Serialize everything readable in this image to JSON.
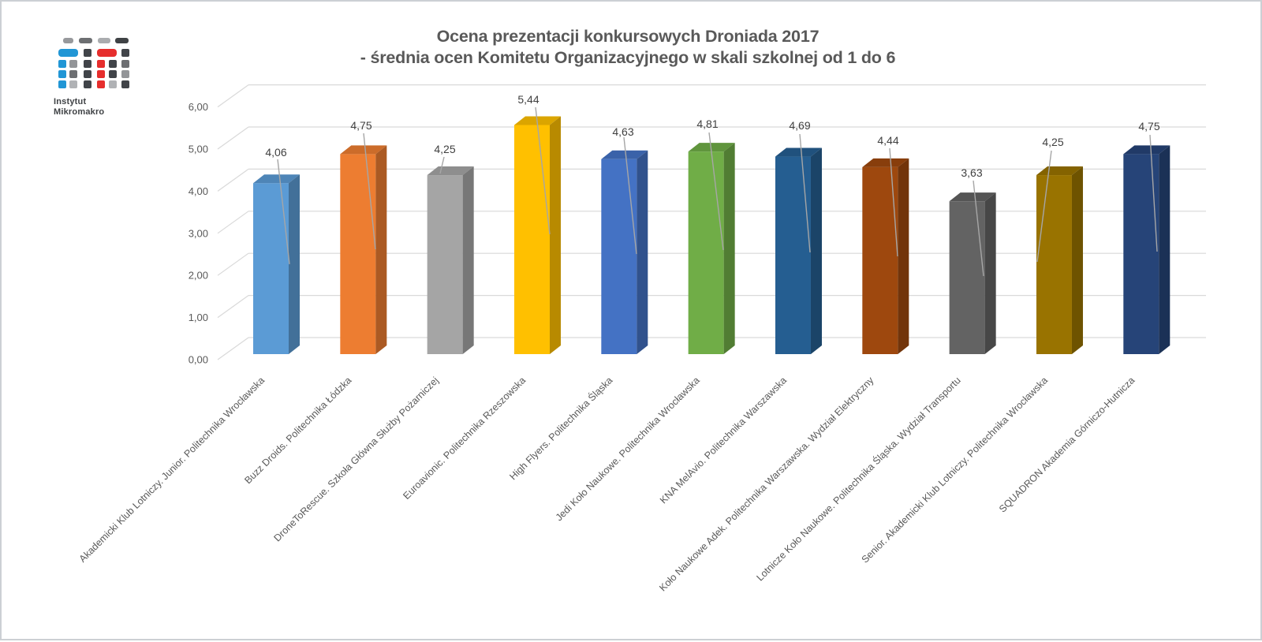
{
  "branding": {
    "logo_text_line1": "Instytut",
    "logo_text_line2": "Mikromakro",
    "logo_colors": {
      "blue": "#2196d5",
      "red": "#e62e2d",
      "dark_gray": "#414449",
      "mid_gray": "#6d6f72",
      "gray": "#939598",
      "light_gray": "#b0b2b5"
    }
  },
  "chart_data": {
    "type": "bar",
    "variant": "3d-column",
    "title": "Ocena prezentacji konkursowych Droniada 2017",
    "subtitle": "- średnia ocen Komitetu Organizacyjnego w skali szkolnej od 1 do 6",
    "categories": [
      "Akademicki Klub Lotniczy. Junior. Politechnika Wrocławska",
      "Buzz Droids. Politechnika Łódzka",
      "DroneToRescue. Szkoła Główna Służby Pożarniczej",
      "Euroavionic. Politechnika Rzeszowska",
      "High Flyers. Politechnika Śląska",
      "Jedi Koło Naukowe. Politechnika Wrocławska",
      "KNA MelAvio. Politechnika Warszawska",
      "Koło Naukowe Adek. Politechnika Warszawska. Wydział Elektryczny",
      "Lotnicze Koło Naukowe. Politechnika Śląska. Wydział Transportu",
      "Senior. Akademicki Klub Lotniczy. Politechnika Wrocławska",
      "SQUADRON Akademia Górniczo-Hutnicza"
    ],
    "values": [
      4.06,
      4.75,
      4.25,
      5.44,
      4.63,
      4.81,
      4.69,
      4.44,
      3.63,
      4.25,
      4.75
    ],
    "value_labels": [
      "4,06",
      "4,75",
      "4,25",
      "5,44",
      "4,63",
      "4,81",
      "4,69",
      "4,44",
      "3,63",
      "4,25",
      "4,75"
    ],
    "bar_colors": [
      "#5B9BD5",
      "#ED7D31",
      "#A5A5A5",
      "#FFC000",
      "#4472C4",
      "#70AD47",
      "#255E91",
      "#9E480E",
      "#636363",
      "#997300",
      "#264478"
    ],
    "ylim": [
      0,
      6
    ],
    "ytick_labels": [
      "0,00",
      "1,00",
      "2,00",
      "3,00",
      "4,00",
      "5,00",
      "6,00"
    ],
    "decimal_separator": ",",
    "grid": true,
    "legend": false,
    "axis_text_color": "#595959",
    "data_label_color": "#404040",
    "gridline_color": "#d9d9d9",
    "leader_line_color": "#a6a6a6",
    "label_layout": [
      {
        "label": [
          348,
          191
        ],
        "leader": [
          [
            350,
            200
          ],
          [
            365,
            333
          ]
        ]
      },
      {
        "label": [
          456,
          157
        ],
        "leader": [
          [
            459,
            167
          ],
          [
            474,
            314
          ]
        ]
      },
      {
        "label": [
          562,
          187
        ],
        "leader": [
          [
            561,
            197
          ],
          [
            556,
            218
          ]
        ]
      },
      {
        "label": [
          668,
          124
        ],
        "leader": [
          [
            677,
            134
          ],
          [
            695,
            295
          ]
        ]
      },
      {
        "label": [
          788,
          165
        ],
        "leader": [
          [
            789,
            172
          ],
          [
            805,
            320
          ]
        ]
      },
      {
        "label": [
          895,
          155
        ],
        "leader": [
          [
            897,
            166
          ],
          [
            915,
            315
          ]
        ]
      },
      {
        "label": [
          1012,
          157
        ],
        "leader": [
          [
            1012,
            168
          ],
          [
            1025,
            318
          ]
        ]
      },
      {
        "label": [
          1124,
          176
        ],
        "leader": [
          [
            1126,
            186
          ],
          [
            1136,
            323
          ]
        ]
      },
      {
        "label": [
          1230,
          217
        ],
        "leader": [
          [
            1232,
            227
          ],
          [
            1245,
            348
          ]
        ]
      },
      {
        "label": [
          1333,
          178
        ],
        "leader": [
          [
            1331,
            189
          ],
          [
            1313,
            330
          ]
        ]
      },
      {
        "label": [
          1455,
          158
        ],
        "leader": [
          [
            1456,
            169
          ],
          [
            1465,
            317
          ]
        ]
      }
    ]
  }
}
